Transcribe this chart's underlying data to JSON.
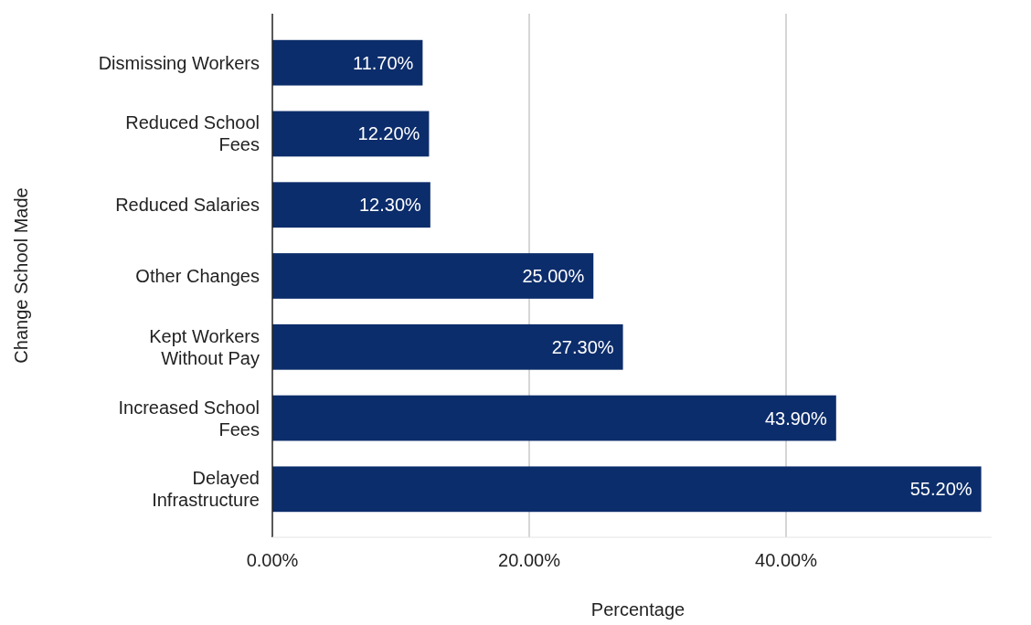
{
  "chart_data": {
    "type": "bar",
    "orientation": "horizontal",
    "xlabel": "Percentage",
    "ylabel": "Change School Made",
    "categories": [
      "Dismissing Workers",
      "Reduced School Fees",
      "Reduced Salaries",
      "Other Changes",
      "Kept Workers Without Pay",
      "Increased School Fees",
      "Delayed Infrastructure"
    ],
    "values": [
      11.7,
      12.2,
      12.3,
      25.0,
      27.3,
      43.9,
      55.2
    ],
    "value_labels": [
      "11.70%",
      "12.20%",
      "12.30%",
      "25.00%",
      "27.30%",
      "43.90%",
      "55.20%"
    ],
    "color": "#0c2d6b",
    "xticks": [
      {
        "value": 0,
        "label": "0.00%"
      },
      {
        "value": 20,
        "label": "20.00%"
      },
      {
        "value": 40,
        "label": "40.00%"
      }
    ],
    "xlim": [
      0,
      56
    ],
    "grid": "x"
  }
}
